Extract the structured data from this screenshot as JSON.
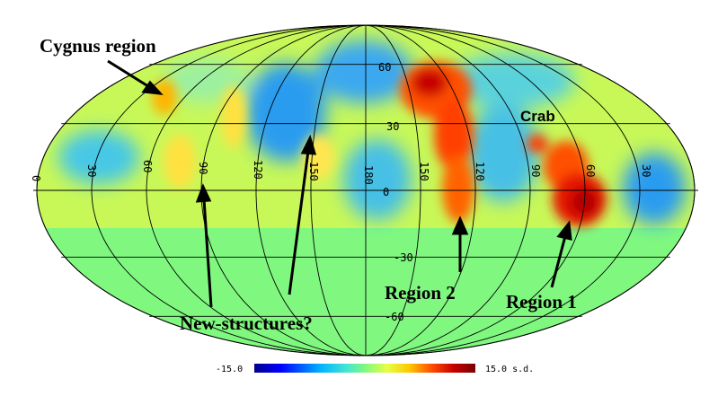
{
  "map": {
    "projection": "Mollweide (equal-area all-sky)",
    "lat_labels": [
      "60",
      "30",
      "0",
      "-30",
      "-60"
    ],
    "lon_labels": [
      "0",
      "30",
      "60",
      "90",
      "120",
      "150",
      "180",
      "150",
      "120",
      "90",
      "60",
      "30"
    ],
    "unobserved_fill": "#80f880",
    "colormap": [
      "#00008c",
      "#0000ff",
      "#00b4ff",
      "#46e6d2",
      "#80f880",
      "#e6ff46",
      "#ffc800",
      "#ff5000",
      "#c80000",
      "#780000"
    ]
  },
  "annotations": {
    "cygnus": "Cygnus region",
    "crab": "Crab",
    "new_structures": "New-structures?",
    "region2": "Region 2",
    "region1": "Region 1"
  },
  "colorbar": {
    "min_label": "-15.0",
    "max_label": "15.0 s.d."
  }
}
